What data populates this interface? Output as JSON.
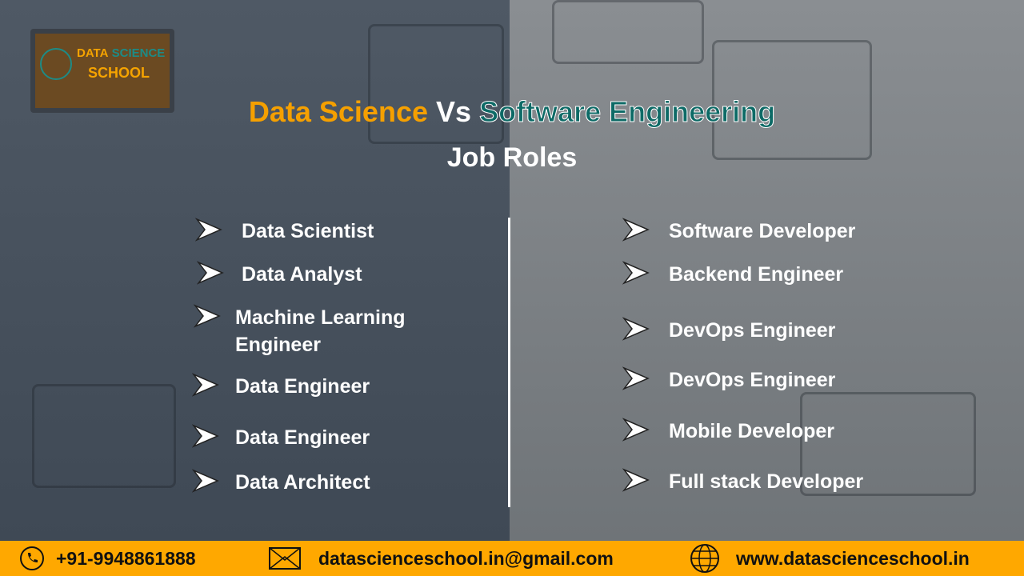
{
  "logo": {
    "line1a": "DATA",
    "line1b": "SCIENCE",
    "line2": "SCHOOL"
  },
  "title": {
    "part1": "Data Science",
    "part2": "Vs",
    "part3": "Software Engineering",
    "subtitle": "Job Roles"
  },
  "left_roles": [
    "Data Scientist",
    "Data Analyst",
    "Machine Learning Engineer",
    "Data Engineer",
    "Data Engineer",
    "Data Architect"
  ],
  "right_roles": [
    "Software Developer",
    "Backend Engineer",
    "DevOps Engineer",
    "DevOps Engineer",
    "Mobile Developer",
    "Full stack Developer"
  ],
  "footer": {
    "phone": "+91-9948861888",
    "email": "datascienceschool.in@gmail.com",
    "website": "www.datascienceschool.in"
  },
  "colors": {
    "accent_orange": "#f5a000",
    "accent_teal": "#0d6a66",
    "footer_bg": "#ffa800"
  }
}
